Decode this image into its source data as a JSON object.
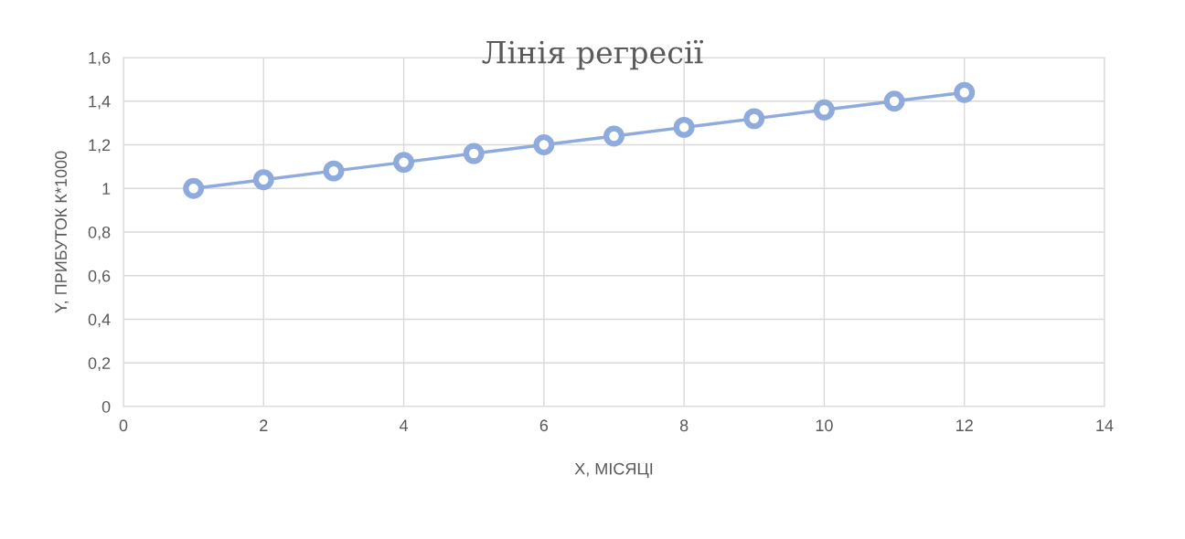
{
  "chart_data": {
    "type": "line",
    "title": "Лінія регресії",
    "xlabel": "X, МІСЯЦІ",
    "ylabel": "Y, ПРИБУТОК К*1000",
    "series": [
      {
        "color": "#8faadc",
        "x": [
          1,
          2,
          3,
          4,
          5,
          6,
          7,
          8,
          9,
          10,
          11,
          12
        ],
        "values": [
          1.0,
          1.04,
          1.08,
          1.12,
          1.16,
          1.2,
          1.24,
          1.28,
          1.32,
          1.36,
          1.4,
          1.44
        ]
      }
    ],
    "xlim": [
      0,
      14
    ],
    "xticks": [
      0,
      2,
      4,
      6,
      8,
      10,
      12,
      14
    ],
    "ylim": [
      0,
      1.6
    ],
    "yticks": [
      0,
      {
        "value": 0.2,
        "label": "0,2"
      },
      {
        "value": 0.4,
        "label": "0,4"
      },
      {
        "value": 0.6,
        "label": "0,6"
      },
      {
        "value": 0.8,
        "label": "0,8"
      },
      1,
      {
        "value": 1.2,
        "label": "1,2"
      },
      {
        "value": 1.4,
        "label": "1,4"
      },
      {
        "value": 1.6,
        "label": "1,6"
      }
    ],
    "grid": true,
    "marker": "circle",
    "line_style": "solid"
  }
}
